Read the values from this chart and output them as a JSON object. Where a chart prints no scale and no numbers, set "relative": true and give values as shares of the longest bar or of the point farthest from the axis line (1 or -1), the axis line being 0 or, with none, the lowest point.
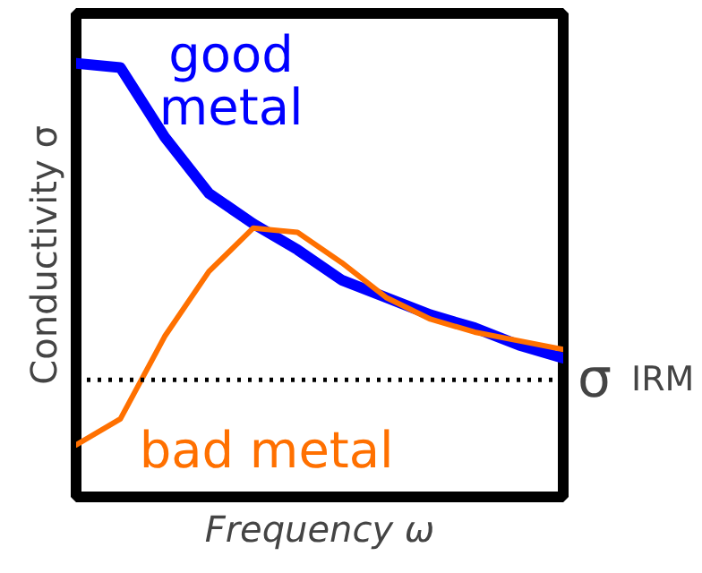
{
  "chart_data": {
    "type": "line",
    "relative": true,
    "xlabel": "Frequency ω",
    "ylabel": "Conductivity σ",
    "categories": [
      null,
      null,
      null,
      null,
      null,
      null,
      null,
      null,
      null,
      null,
      null,
      null
    ],
    "series": [
      {
        "name": "good metal",
        "color": "#0000ff",
        "values": [
          1.0,
          0.99,
          0.83,
          0.7,
          0.63,
          0.57,
          0.5,
          0.46,
          0.42,
          0.39,
          0.35,
          0.32
        ]
      },
      {
        "name": "bad metal",
        "color": "#ff7000",
        "values": [
          0.12,
          0.18,
          0.37,
          0.52,
          0.62,
          0.61,
          0.54,
          0.46,
          0.41,
          0.38,
          0.36,
          0.34
        ]
      }
    ],
    "ref_lines": [
      {
        "axis": "y",
        "value": 0.27,
        "label": "σ$_{IRM}$",
        "color": "#000000",
        "line_style": "dotted"
      }
    ],
    "grid": false,
    "marker": "none",
    "line_style": "solid"
  }
}
